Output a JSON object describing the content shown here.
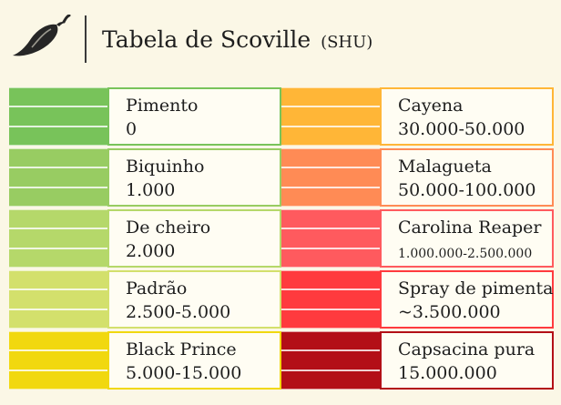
{
  "header": {
    "icon": "chili-pepper-icon",
    "title": "Tabela de Scoville",
    "unit": "(SHU)"
  },
  "left": [
    {
      "name": "Pimento",
      "value": "0",
      "color": "#78c35a"
    },
    {
      "name": "Biquinho",
      "value": "1.000",
      "color": "#98cc62"
    },
    {
      "name": "De cheiro",
      "value": "2.000",
      "color": "#b5d86a"
    },
    {
      "name": "Padrão",
      "value": "2.500-5.000",
      "color": "#d3e06c"
    },
    {
      "name": "Black Prince",
      "value": "5.000-15.000",
      "color": "#f1d80f"
    }
  ],
  "right": [
    {
      "name": "Cayena",
      "value": "30.000-50.000",
      "color": "#ffb637"
    },
    {
      "name": "Malagueta",
      "value": "50.000-100.000",
      "color": "#ff8b55"
    },
    {
      "name": "Carolina Reaper",
      "value": "1.000.000-2.500.000",
      "color": "#ff5a5e"
    },
    {
      "name": "Spray de pimenta",
      "value": "~3.500.000",
      "color": "#ff3a3e"
    },
    {
      "name": "Capsacina pura",
      "value": "15.000.000",
      "color": "#b30f17"
    }
  ]
}
